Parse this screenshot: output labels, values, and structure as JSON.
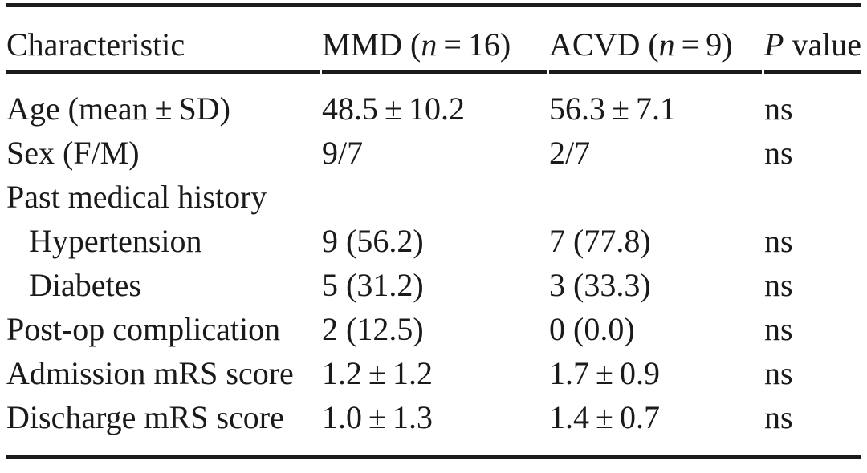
{
  "table": {
    "type": "table",
    "header": {
      "characteristic": "Characteristic",
      "mmd_prefix": "MMD (",
      "mmd_n": "n",
      "mmd_suffix": " = 16)",
      "acvd_prefix": "ACVD (",
      "acvd_n": "n",
      "acvd_suffix": " = 9)",
      "p_italic": "P",
      "p_suffix": " value"
    },
    "rows": [
      {
        "label": "Age (mean ± SD)",
        "mmd": "48.5 ± 10.2",
        "acvd": "56.3 ± 7.1",
        "p": "ns"
      },
      {
        "label": "Sex (F/M)",
        "mmd": "9/7",
        "acvd": "2/7",
        "p": "ns"
      },
      {
        "label": "Past medical history",
        "mmd": "",
        "acvd": "",
        "p": ""
      },
      {
        "label": "Hypertension",
        "mmd": "9 (56.2)",
        "acvd": "7 (77.8)",
        "p": "ns"
      },
      {
        "label": "Diabetes",
        "mmd": "5 (31.2)",
        "acvd": "3 (33.3)",
        "p": "ns"
      },
      {
        "label": "Post-op complication",
        "mmd": "2 (12.5)",
        "acvd": "0 (0.0)",
        "p": "ns"
      },
      {
        "label": "Admission mRS score",
        "mmd": "1.2 ± 1.2",
        "acvd": "1.7 ± 0.9",
        "p": "ns"
      },
      {
        "label": "Discharge mRS score",
        "mmd": "1.0 ± 1.3",
        "acvd": "1.4 ± 0.7",
        "p": "ns"
      }
    ]
  },
  "colors": {
    "background": "#ffffff",
    "text": "#1a1a1a",
    "rule": "#1b1b1b"
  }
}
